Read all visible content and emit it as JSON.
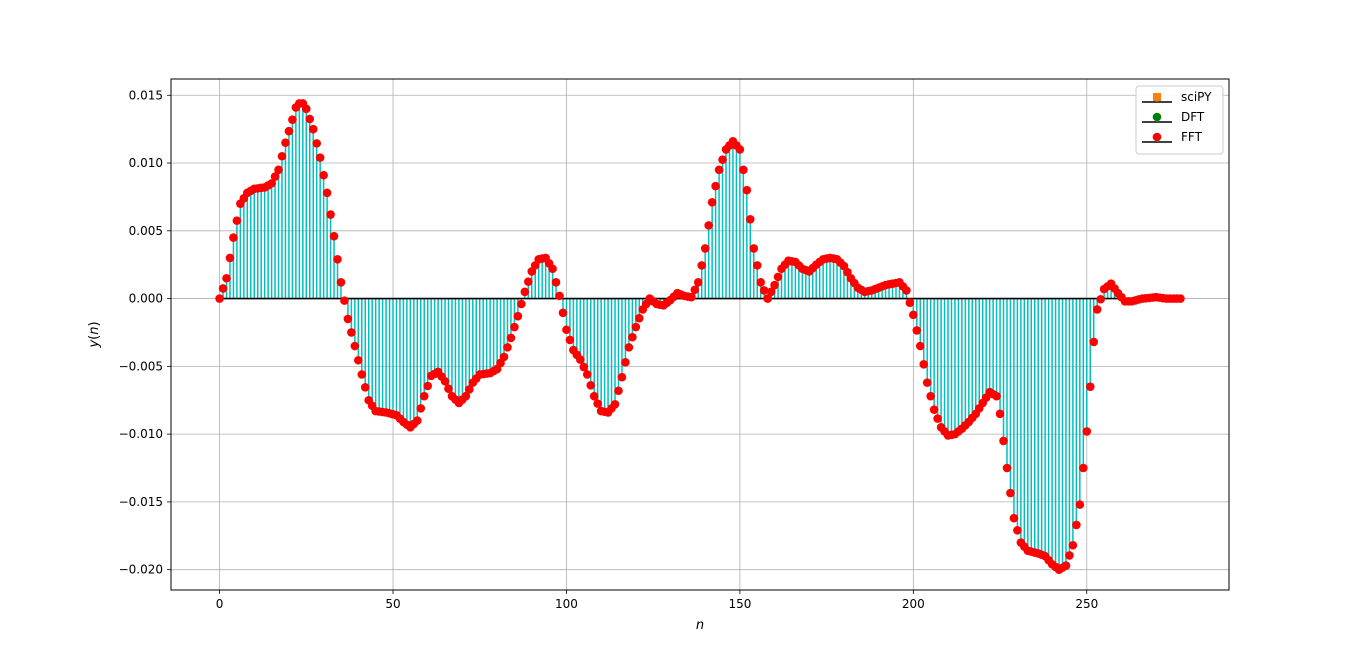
{
  "chart_data": {
    "type": "stem",
    "title": "",
    "xlabel": "n",
    "ylabel": "y(n)",
    "xlim": [
      -14,
      291
    ],
    "ylim": [
      -0.0215,
      0.0162
    ],
    "xticks": [
      0,
      50,
      100,
      150,
      200,
      250
    ],
    "xtick_labels": [
      "0",
      "50",
      "100",
      "150",
      "200",
      "250"
    ],
    "yticks": [
      -0.02,
      -0.015,
      -0.01,
      -0.005,
      0.0,
      0.005,
      0.01,
      0.015
    ],
    "ytick_labels": [
      "−0.020",
      "−0.015",
      "−0.010",
      "−0.005",
      "0.000",
      "0.005",
      "0.010",
      "0.015"
    ],
    "grid": true,
    "legend_position": "top-right",
    "colors": {
      "scipy_marker": "#ff7f0e",
      "dft_marker": "#008000",
      "fft_marker": "#ff0000",
      "stem_line": "#00bfbf",
      "baseline": "#000000",
      "grid": "#b0b0b0"
    },
    "series": [
      {
        "name": "sciPY",
        "marker": "square"
      },
      {
        "name": "DFT",
        "marker": "circle"
      },
      {
        "name": "FFT",
        "marker": "circle"
      }
    ],
    "keypoints": [
      [
        0,
        0.0
      ],
      [
        2,
        0.0015
      ],
      [
        4,
        0.0045
      ],
      [
        6,
        0.007
      ],
      [
        8,
        0.0078
      ],
      [
        10,
        0.0081
      ],
      [
        13,
        0.0082
      ],
      [
        15,
        0.0085
      ],
      [
        17,
        0.0095
      ],
      [
        19,
        0.0115
      ],
      [
        21,
        0.0132
      ],
      [
        22,
        0.0141
      ],
      [
        23,
        0.0144
      ],
      [
        24,
        0.0144
      ],
      [
        25,
        0.014
      ],
      [
        27,
        0.0125
      ],
      [
        29,
        0.0104
      ],
      [
        31,
        0.0078
      ],
      [
        33,
        0.0046
      ],
      [
        35,
        0.0012
      ],
      [
        37,
        -0.0015
      ],
      [
        39,
        -0.0035
      ],
      [
        41,
        -0.0056
      ],
      [
        43,
        -0.0075
      ],
      [
        45,
        -0.0083
      ],
      [
        48,
        -0.0084
      ],
      [
        51,
        -0.0086
      ],
      [
        53,
        -0.0091
      ],
      [
        55,
        -0.0095
      ],
      [
        57,
        -0.009
      ],
      [
        59,
        -0.0072
      ],
      [
        61,
        -0.0057
      ],
      [
        63,
        -0.0054
      ],
      [
        65,
        -0.0061
      ],
      [
        67,
        -0.0072
      ],
      [
        69,
        -0.0077
      ],
      [
        71,
        -0.0072
      ],
      [
        73,
        -0.0062
      ],
      [
        75,
        -0.0056
      ],
      [
        78,
        -0.0055
      ],
      [
        80,
        -0.0052
      ],
      [
        82,
        -0.0043
      ],
      [
        84,
        -0.0029
      ],
      [
        86,
        -0.0013
      ],
      [
        88,
        0.0005
      ],
      [
        90,
        0.002
      ],
      [
        92,
        0.0029
      ],
      [
        94,
        0.003
      ],
      [
        96,
        0.0022
      ],
      [
        98,
        0.0002
      ],
      [
        100,
        -0.0023
      ],
      [
        102,
        -0.0038
      ],
      [
        104,
        -0.0045
      ],
      [
        106,
        -0.0056
      ],
      [
        108,
        -0.0072
      ],
      [
        110,
        -0.0083
      ],
      [
        112,
        -0.0084
      ],
      [
        114,
        -0.0078
      ],
      [
        116,
        -0.0058
      ],
      [
        118,
        -0.0036
      ],
      [
        120,
        -0.0021
      ],
      [
        122,
        -0.0008
      ],
      [
        124,
        0.0
      ],
      [
        126,
        -0.0004
      ],
      [
        128,
        -0.0005
      ],
      [
        130,
        -0.0001
      ],
      [
        132,
        0.0004
      ],
      [
        134,
        0.0002
      ],
      [
        136,
        0.0001
      ],
      [
        138,
        0.0012
      ],
      [
        140,
        0.0037
      ],
      [
        142,
        0.0071
      ],
      [
        144,
        0.0095
      ],
      [
        146,
        0.011
      ],
      [
        148,
        0.0116
      ],
      [
        150,
        0.011
      ],
      [
        152,
        0.008
      ],
      [
        154,
        0.0037
      ],
      [
        156,
        0.0012
      ],
      [
        158,
        0.0
      ],
      [
        160,
        0.001
      ],
      [
        162,
        0.0022
      ],
      [
        164,
        0.0028
      ],
      [
        166,
        0.0027
      ],
      [
        168,
        0.0022
      ],
      [
        170,
        0.002
      ],
      [
        172,
        0.0025
      ],
      [
        174,
        0.0029
      ],
      [
        176,
        0.003
      ],
      [
        178,
        0.0029
      ],
      [
        180,
        0.0024
      ],
      [
        182,
        0.0015
      ],
      [
        184,
        0.0008
      ],
      [
        186,
        0.0005
      ],
      [
        188,
        0.0006
      ],
      [
        190,
        0.0008
      ],
      [
        192,
        0.001
      ],
      [
        194,
        0.0011
      ],
      [
        196,
        0.0012
      ],
      [
        198,
        0.0006
      ],
      [
        200,
        -0.0012
      ],
      [
        202,
        -0.0035
      ],
      [
        204,
        -0.0062
      ],
      [
        206,
        -0.0082
      ],
      [
        208,
        -0.0095
      ],
      [
        210,
        -0.0101
      ],
      [
        212,
        -0.01
      ],
      [
        214,
        -0.0096
      ],
      [
        216,
        -0.0091
      ],
      [
        218,
        -0.0085
      ],
      [
        220,
        -0.0077
      ],
      [
        222,
        -0.0069
      ],
      [
        224,
        -0.0072
      ],
      [
        225,
        -0.0085
      ],
      [
        227,
        -0.0125
      ],
      [
        229,
        -0.0162
      ],
      [
        231,
        -0.018
      ],
      [
        233,
        -0.0186
      ],
      [
        236,
        -0.0188
      ],
      [
        238,
        -0.019
      ],
      [
        240,
        -0.0196
      ],
      [
        242,
        -0.02
      ],
      [
        244,
        -0.0197
      ],
      [
        246,
        -0.0182
      ],
      [
        248,
        -0.0152
      ],
      [
        250,
        -0.0098
      ],
      [
        252,
        -0.0032
      ],
      [
        253,
        -0.0008
      ],
      [
        255,
        0.0007
      ],
      [
        257,
        0.0011
      ],
      [
        259,
        0.0004
      ],
      [
        261,
        -0.0002
      ],
      [
        263,
        -0.0002
      ],
      [
        266,
        0.0
      ],
      [
        270,
        0.0001
      ],
      [
        273,
        0.0
      ],
      [
        277,
        0.0
      ]
    ],
    "n_points": 278
  },
  "legend": {
    "items": [
      "sciPY",
      "DFT",
      "FFT"
    ]
  }
}
